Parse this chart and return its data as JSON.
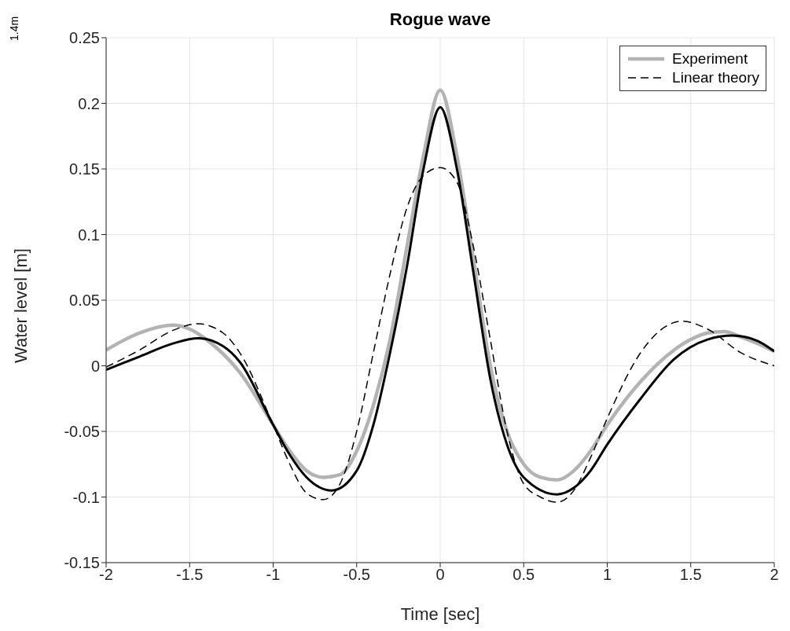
{
  "chart_data": {
    "type": "line",
    "title": "Rogue wave",
    "xlabel": "Time [sec]",
    "ylabel": "Water level [m]",
    "xlim": [
      -2,
      2
    ],
    "xticks": [
      -2,
      -1.5,
      -1,
      -0.5,
      0,
      0.5,
      1,
      1.5,
      2
    ],
    "ylim": [
      -0.15,
      0.25
    ],
    "yticks": [
      -0.15,
      -0.1,
      -0.05,
      0,
      0.05,
      0.1,
      0.15,
      0.2,
      0.25
    ],
    "grid": true,
    "legend": "top right",
    "marker": "none",
    "annotations": [
      "1.4m"
    ],
    "series": [
      {
        "name": "Experiment",
        "color": "#b3b3b3",
        "line_style": "solid",
        "x": [
          -2,
          -1.8,
          -1.6,
          -1.5,
          -1.4,
          -1.2,
          -1,
          -0.9,
          -0.8,
          -0.7,
          -0.6,
          -0.5,
          -0.4,
          -0.3,
          -0.2,
          -0.1,
          0,
          0.1,
          0.2,
          0.3,
          0.4,
          0.5,
          0.6,
          0.7,
          0.8,
          0.9,
          1,
          1.2,
          1.4,
          1.5,
          1.6,
          1.7,
          1.8,
          1.9,
          2
        ],
        "values": [
          0.012,
          0.025,
          0.031,
          0.028,
          0.02,
          -0.005,
          -0.045,
          -0.065,
          -0.08,
          -0.085,
          -0.083,
          -0.065,
          -0.03,
          0.02,
          0.09,
          0.16,
          0.21,
          0.16,
          0.08,
          0,
          -0.05,
          -0.075,
          -0.085,
          -0.087,
          -0.08,
          -0.065,
          -0.045,
          -0.012,
          0.012,
          0.02,
          0.025,
          0.026,
          0.022,
          0.017,
          0.011
        ]
      },
      {
        "color": "#000000",
        "line_style": "solid",
        "x": [
          -2,
          -1.8,
          -1.6,
          -1.45,
          -1.3,
          -1.2,
          -1,
          -0.9,
          -0.8,
          -0.65,
          -0.5,
          -0.4,
          -0.3,
          -0.2,
          -0.1,
          0,
          0.1,
          0.2,
          0.3,
          0.4,
          0.5,
          0.7,
          0.8,
          0.9,
          1,
          1.2,
          1.4,
          1.6,
          1.75,
          1.9,
          2
        ],
        "values": [
          -0.003,
          0.007,
          0.017,
          0.021,
          0.015,
          0.003,
          -0.045,
          -0.068,
          -0.085,
          -0.095,
          -0.08,
          -0.045,
          0.01,
          0.075,
          0.15,
          0.197,
          0.15,
          0.07,
          -0.01,
          -0.06,
          -0.085,
          -0.098,
          -0.093,
          -0.08,
          -0.06,
          -0.025,
          0.005,
          0.02,
          0.023,
          0.019,
          0.011
        ]
      },
      {
        "name": "Linear theory",
        "color": "#000000",
        "line_style": "dashed",
        "x": [
          -2,
          -1.8,
          -1.6,
          -1.45,
          -1.3,
          -1.2,
          -1,
          -0.9,
          -0.8,
          -0.7,
          -0.6,
          -0.5,
          -0.4,
          -0.3,
          -0.2,
          -0.1,
          0,
          0.1,
          0.2,
          0.3,
          0.4,
          0.5,
          0.6,
          0.7,
          0.8,
          0.9,
          1,
          1.2,
          1.35,
          1.45,
          1.6,
          1.8,
          2
        ],
        "values": [
          -0.001,
          0.012,
          0.027,
          0.032,
          0.025,
          0.01,
          -0.045,
          -0.075,
          -0.097,
          -0.102,
          -0.09,
          -0.05,
          0.01,
          0.07,
          0.12,
          0.145,
          0.151,
          0.14,
          0.09,
          0.02,
          -0.05,
          -0.09,
          -0.1,
          -0.104,
          -0.095,
          -0.07,
          -0.04,
          0.01,
          0.03,
          0.034,
          0.028,
          0.01,
          0
        ]
      }
    ]
  }
}
